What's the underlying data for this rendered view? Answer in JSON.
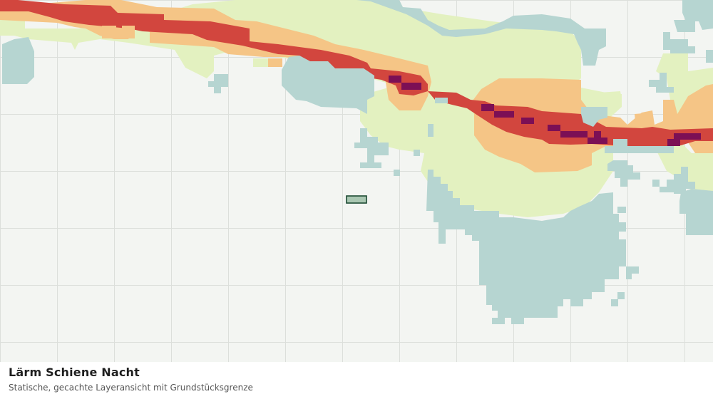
{
  "layer": {
    "title": "Lärm Schiene Nacht",
    "subtitle": "Statische, gecachte Layeransicht mit Grundstücksgrenze"
  },
  "colors": {
    "background": "#f3f5f2",
    "grid": "#dcdfdb",
    "water": "#b6d5d1",
    "noise_low": "#e3f1c0",
    "noise_medium": "#f5c586",
    "noise_high": "#d2463e",
    "noise_very_high": "#7c0f55",
    "parcel_fill": "#a9c7b2",
    "parcel_stroke": "#1c4a33"
  },
  "legend_levels": [
    "noise_low",
    "noise_medium",
    "noise_high",
    "noise_very_high"
  ]
}
